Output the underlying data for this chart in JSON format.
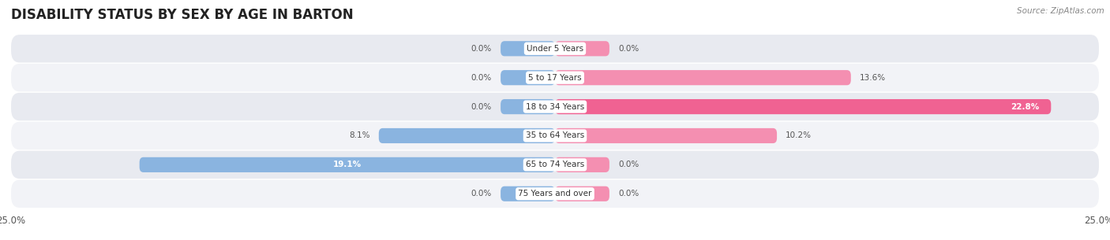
{
  "title": "DISABILITY STATUS BY SEX BY AGE IN BARTON",
  "source": "Source: ZipAtlas.com",
  "categories": [
    "Under 5 Years",
    "5 to 17 Years",
    "18 to 34 Years",
    "35 to 64 Years",
    "65 to 74 Years",
    "75 Years and over"
  ],
  "male_values": [
    0.0,
    0.0,
    0.0,
    8.1,
    19.1,
    0.0
  ],
  "female_values": [
    0.0,
    13.6,
    22.8,
    10.2,
    0.0,
    0.0
  ],
  "male_color": "#8ab4e0",
  "female_color": "#f48fb1",
  "female_color_bright": "#f06292",
  "row_bg_even": "#e8eaf0",
  "row_bg_odd": "#f2f3f7",
  "xlim": 25.0,
  "min_stub": 2.5,
  "bar_height": 0.52,
  "title_fontsize": 12,
  "source_fontsize": 7.5,
  "label_fontsize": 8.5,
  "tick_fontsize": 8.5,
  "value_fontsize": 7.5,
  "cat_fontsize": 7.5
}
